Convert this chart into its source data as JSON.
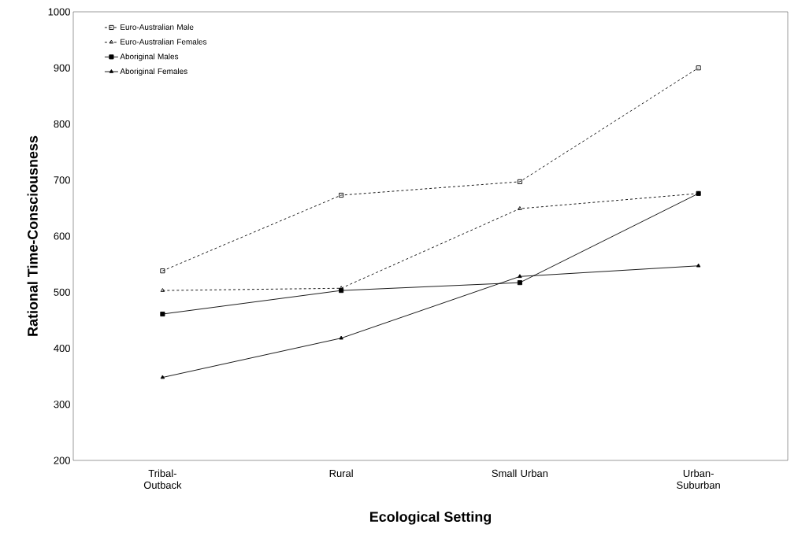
{
  "chart_data": {
    "type": "line",
    "xlabel": "Ecological Setting",
    "ylabel": "Rational Time-Consciousness",
    "categories": [
      "Tribal-Outback",
      "Rural",
      "Small Urban",
      "Urban-Suburban"
    ],
    "ylim": [
      200,
      1000
    ],
    "yticks": [
      200,
      300,
      400,
      500,
      600,
      700,
      800,
      900,
      1000
    ],
    "grid": false,
    "legend": "top left",
    "series": [
      {
        "name": "Euro-Australian Male",
        "color": "#000000",
        "marker": "square",
        "line_style": "dashed",
        "values": [
          538,
          673,
          697,
          900
        ]
      },
      {
        "name": "Euro-Australian Females",
        "color": "#000000",
        "marker": "triangle",
        "line_style": "dashed",
        "values": [
          503,
          507,
          649,
          676
        ]
      },
      {
        "name": "Aboriginal Males",
        "color": "#000000",
        "marker": "square",
        "line_style": "solid",
        "values": [
          461,
          503,
          517,
          676
        ]
      },
      {
        "name": "Aboriginal Females",
        "color": "#000000",
        "marker": "triangle",
        "line_style": "solid",
        "values": [
          348,
          418,
          528,
          547
        ]
      }
    ]
  }
}
